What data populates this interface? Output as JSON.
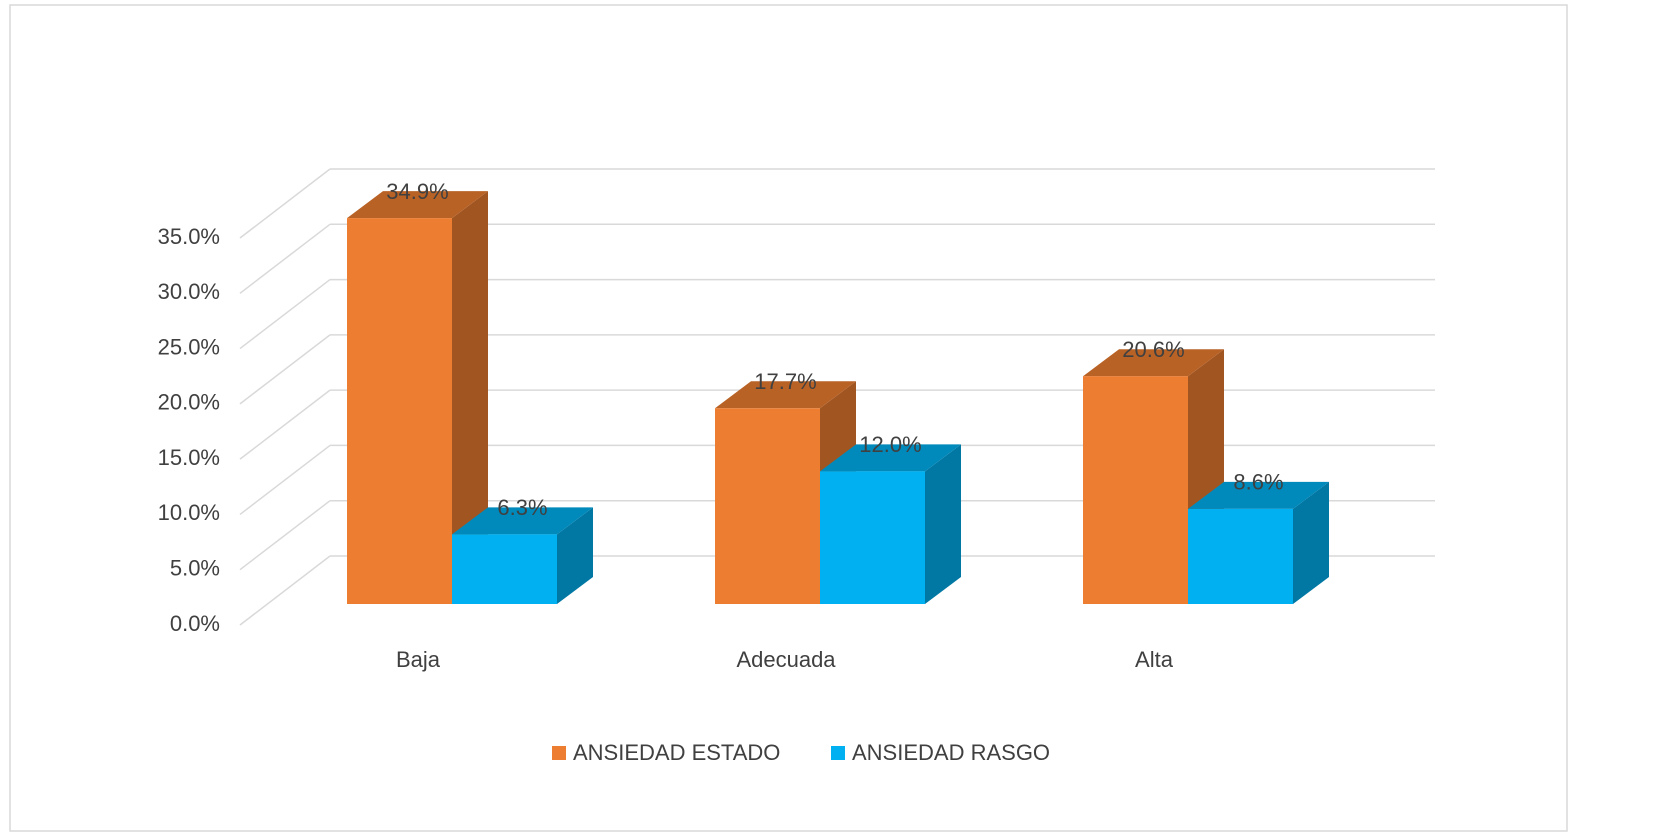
{
  "chart_data": {
    "type": "bar3d",
    "categories": [
      "Baja",
      "Adecuada",
      "Alta"
    ],
    "series": [
      {
        "name": "ANSIEDAD ESTADO",
        "color": "#ed7d31",
        "values": [
          34.9,
          17.7,
          20.6
        ],
        "value_labels": [
          "34.9%",
          "17.7%",
          "20.6%"
        ]
      },
      {
        "name": "ANSIEDAD RASGO",
        "color": "#00b0f0",
        "values": [
          6.3,
          12.0,
          8.6
        ],
        "value_labels": [
          "6.3%",
          "12.0%",
          "8.6%"
        ]
      }
    ],
    "ylim": [
      0,
      35
    ],
    "yticks": [
      {
        "value": 0,
        "label": "0.0%"
      },
      {
        "value": 5,
        "label": "5.0%"
      },
      {
        "value": 10,
        "label": "10.0%"
      },
      {
        "value": 15,
        "label": "15.0%"
      },
      {
        "value": 20,
        "label": "20.0%"
      },
      {
        "value": 25,
        "label": "25.0%"
      },
      {
        "value": 30,
        "label": "30.0%"
      },
      {
        "value": 35,
        "label": "35.0%"
      }
    ],
    "grid": true,
    "legend": "bottom"
  }
}
